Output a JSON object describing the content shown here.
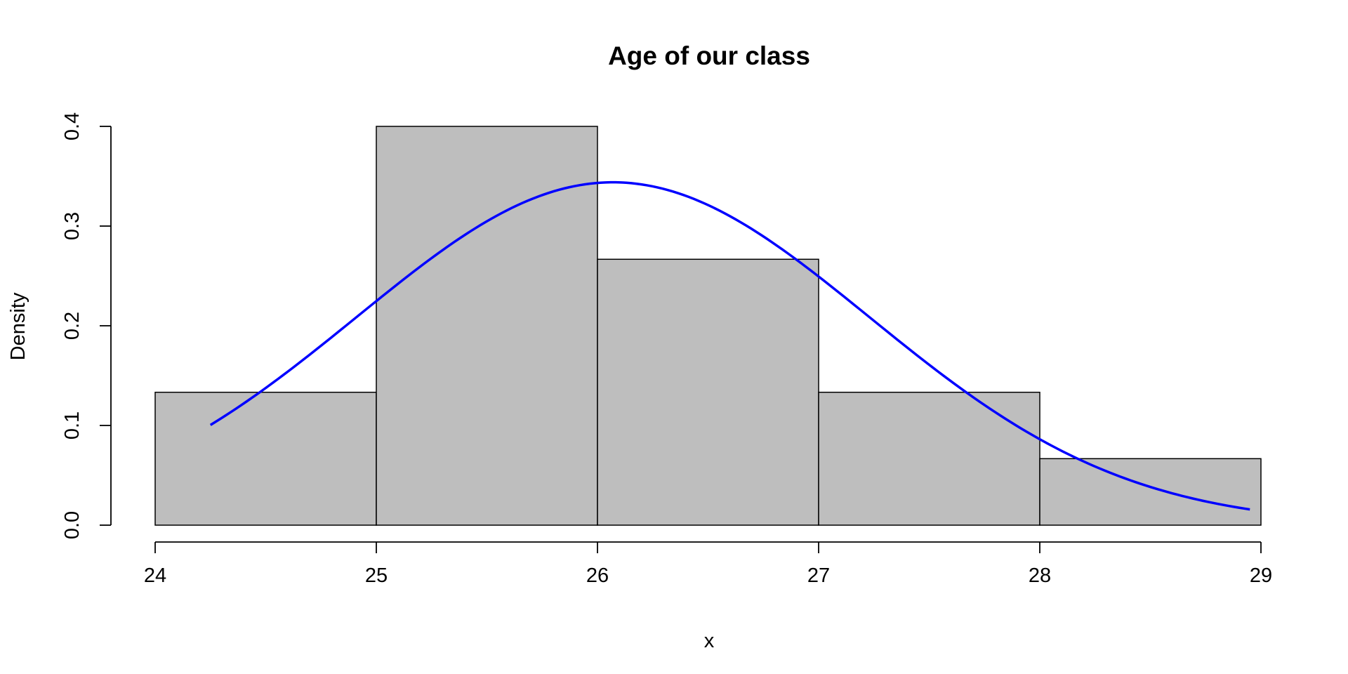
{
  "chart_data": {
    "type": "bar",
    "title": "Age of our class",
    "xlabel": "x",
    "ylabel": "Density",
    "bins": [
      {
        "start": 24,
        "end": 25,
        "density": 0.1333
      },
      {
        "start": 25,
        "end": 26,
        "density": 0.4
      },
      {
        "start": 26,
        "end": 27,
        "density": 0.2667
      },
      {
        "start": 27,
        "end": 28,
        "density": 0.1333
      },
      {
        "start": 28,
        "end": 29,
        "density": 0.0667
      }
    ],
    "xlim": [
      24,
      29
    ],
    "ylim": [
      0,
      0.4
    ],
    "xticks": [
      "24",
      "25",
      "26",
      "27",
      "28",
      "29"
    ],
    "yticks": [
      "0.0",
      "0.1",
      "0.2",
      "0.3",
      "0.4"
    ],
    "curve": {
      "type": "normal-density",
      "mean": 26.07,
      "sd": 1.16,
      "x_range": [
        24.25,
        28.95
      ],
      "color": "#0000ff"
    },
    "bar_color": "#bebebe",
    "grid": false
  }
}
